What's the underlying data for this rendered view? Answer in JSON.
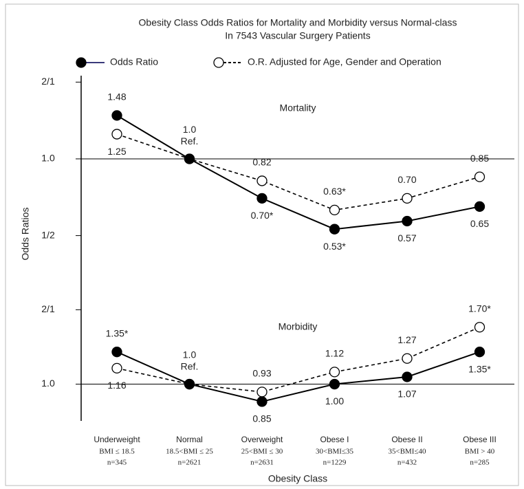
{
  "chart_data": {
    "type": "line",
    "log_base": 2,
    "title": [
      "Obesity Class Odds Ratios for Mortality and Morbidity versus Normal-class",
      "In 7543 Vascular Surgery Patients"
    ],
    "x_label": "Obesity Class",
    "y_label": "Odds Ratios",
    "categories": [
      "Underweight",
      "Normal",
      "Overweight",
      "Obese I",
      "Obese II",
      "Obese III"
    ],
    "category_details": [
      "BMI ≤ 18.5",
      "18.5<BMI ≤ 25",
      "25<BMI ≤ 30",
      "30<BMI≤35",
      "35<BMI≤40",
      "BMI > 40"
    ],
    "category_counts": [
      "n=345",
      "n=2621",
      "n=2631",
      "n=1229",
      "n=432",
      "n=285"
    ],
    "legend": [
      {
        "name": "Odds Ratio",
        "marker": "filled",
        "dash": false
      },
      {
        "name": "O.R. Adjusted for Age, Gender and Operation",
        "marker": "open",
        "dash": true
      }
    ],
    "color": "#000000",
    "panels": [
      {
        "name": "Mortality",
        "ylim": [
          0.35,
          2.12
        ],
        "reference": 1,
        "yticks": [
          {
            "value": 0.5,
            "label": "1/2"
          },
          {
            "value": 1,
            "label": "1.0"
          },
          {
            "value": 2,
            "label": "2/1"
          }
        ],
        "series": [
          {
            "values": [
              1.48,
              1.0,
              0.7,
              0.53,
              0.57,
              0.65
            ],
            "value_labels": [
              "1.48",
              "1.0 Ref.",
              "0.70*",
              "0.53*",
              "0.57",
              "0.65"
            ]
          },
          {
            "values": [
              1.25,
              1.0,
              0.82,
              0.63,
              0.7,
              0.85
            ],
            "value_labels": [
              "1.25",
              null,
              "0.82",
              "0.63*",
              "0.70",
              "0.85"
            ]
          }
        ]
      },
      {
        "name": "Morbidity",
        "ylim": [
          0.71,
          2.59
        ],
        "reference": 1,
        "yticks": [
          {
            "value": 1,
            "label": "1.0"
          },
          {
            "value": 2,
            "label": "2/1"
          }
        ],
        "series": [
          {
            "values": [
              1.35,
              1.0,
              0.85,
              1.0,
              1.07,
              1.35
            ],
            "value_labels": [
              "1.35*",
              "1.0 Ref.",
              "0.85",
              "1.00",
              "1.07",
              "1.35*"
            ]
          },
          {
            "values": [
              1.16,
              1.0,
              0.93,
              1.12,
              1.27,
              1.7
            ],
            "value_labels": [
              "1.16",
              null,
              "0.93",
              "1.12",
              "1.27",
              "1.70*"
            ]
          }
        ]
      }
    ]
  }
}
